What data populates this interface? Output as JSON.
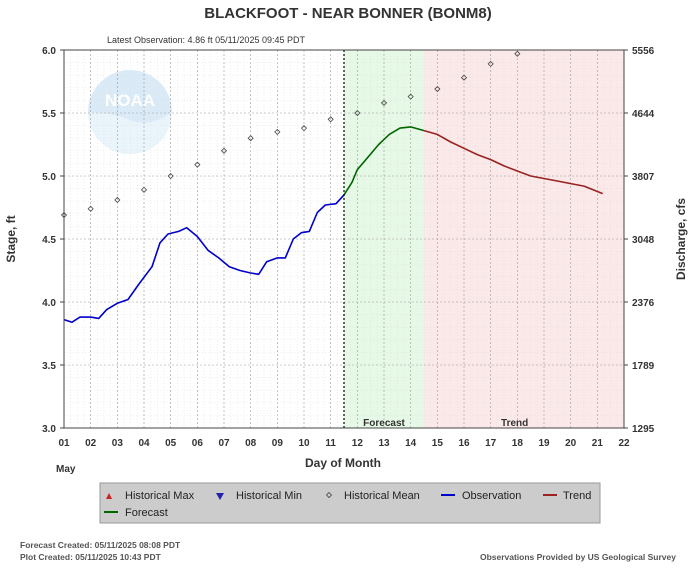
{
  "header": {
    "title": "BLACKFOOT - NEAR BONNER  (BONM8)",
    "latest": "Latest Observation: 4.86 ft 05/11/2025 09:45 PDT"
  },
  "logo_text": "NOAA",
  "footer": {
    "forecast_created": "Forecast Created: 05/11/2025 08:08 PDT",
    "plot_created": "Plot Created: 05/11/2025 10:43 PDT",
    "provider": "Observations Provided by US Geological Survey"
  },
  "colors": {
    "observation": "#0000cc",
    "forecast": "#006600",
    "trend": "#992222",
    "forecast_band": "#e6f8e6",
    "trend_band": "#fbe8e8",
    "historical_max": "#cc2222",
    "historical_min": "#2222aa"
  },
  "chart_data": {
    "type": "line",
    "xlabel": "Day of Month",
    "xmonth": "May",
    "ylabel": "Stage, ft",
    "y2label": "Discharge, cfs",
    "xlim": [
      1,
      22
    ],
    "ylim": [
      3.0,
      6.0
    ],
    "x_ticks": [
      "01",
      "02",
      "03",
      "04",
      "05",
      "06",
      "07",
      "08",
      "09",
      "10",
      "11",
      "12",
      "13",
      "14",
      "15",
      "16",
      "17",
      "18",
      "19",
      "20",
      "21",
      "22"
    ],
    "y_ticks": [
      "3.0",
      "3.5",
      "4.0",
      "4.5",
      "5.0",
      "5.5",
      "6.0"
    ],
    "y2_ticks": [
      "1295",
      "1789",
      "2376",
      "3048",
      "3807",
      "4644",
      "5556"
    ],
    "regions": {
      "now_x": 11.5,
      "forecast": {
        "label": "Forecast",
        "from": 11.5,
        "to": 14.5
      },
      "trend": {
        "label": "Trend",
        "from": 14.5,
        "to": 22
      }
    },
    "legend": {
      "row1": [
        "Historical Max",
        "Historical Min",
        "Historical Mean",
        "Observation",
        "Trend"
      ],
      "row2": [
        "Forecast"
      ]
    },
    "series": [
      {
        "name": "Historical Mean",
        "style": "diamond",
        "points": [
          [
            1,
            4.69
          ],
          [
            2,
            4.74
          ],
          [
            3,
            4.81
          ],
          [
            4,
            4.89
          ],
          [
            5,
            5.0
          ],
          [
            6,
            5.09
          ],
          [
            7,
            5.2
          ],
          [
            8,
            5.3
          ],
          [
            9,
            5.35
          ],
          [
            10,
            5.38
          ],
          [
            11,
            5.45
          ],
          [
            12,
            5.5
          ],
          [
            13,
            5.58
          ],
          [
            14,
            5.63
          ],
          [
            15,
            5.69
          ],
          [
            16,
            5.78
          ],
          [
            17,
            5.89
          ],
          [
            18,
            5.97
          ]
        ]
      },
      {
        "name": "Observation",
        "style": "line",
        "points": [
          [
            1.0,
            3.86
          ],
          [
            1.3,
            3.84
          ],
          [
            1.6,
            3.88
          ],
          [
            2.0,
            3.88
          ],
          [
            2.3,
            3.87
          ],
          [
            2.6,
            3.94
          ],
          [
            3.0,
            3.99
          ],
          [
            3.4,
            4.02
          ],
          [
            3.8,
            4.14
          ],
          [
            4.3,
            4.28
          ],
          [
            4.6,
            4.47
          ],
          [
            4.9,
            4.54
          ],
          [
            5.3,
            4.56
          ],
          [
            5.6,
            4.59
          ],
          [
            6.0,
            4.52
          ],
          [
            6.4,
            4.41
          ],
          [
            6.8,
            4.35
          ],
          [
            7.2,
            4.28
          ],
          [
            7.6,
            4.25
          ],
          [
            8.0,
            4.23
          ],
          [
            8.3,
            4.22
          ],
          [
            8.6,
            4.32
          ],
          [
            9.0,
            4.35
          ],
          [
            9.3,
            4.35
          ],
          [
            9.6,
            4.5
          ],
          [
            9.9,
            4.55
          ],
          [
            10.2,
            4.56
          ],
          [
            10.5,
            4.71
          ],
          [
            10.8,
            4.77
          ],
          [
            11.2,
            4.78
          ],
          [
            11.5,
            4.85
          ]
        ]
      },
      {
        "name": "Forecast",
        "style": "line",
        "points": [
          [
            11.5,
            4.85
          ],
          [
            11.8,
            4.95
          ],
          [
            12.0,
            5.05
          ],
          [
            12.4,
            5.15
          ],
          [
            12.8,
            5.25
          ],
          [
            13.2,
            5.33
          ],
          [
            13.6,
            5.38
          ],
          [
            14.0,
            5.39
          ],
          [
            14.5,
            5.36
          ]
        ]
      },
      {
        "name": "Trend",
        "style": "line",
        "points": [
          [
            14.5,
            5.36
          ],
          [
            15.0,
            5.33
          ],
          [
            15.5,
            5.27
          ],
          [
            16.0,
            5.22
          ],
          [
            16.5,
            5.17
          ],
          [
            17.0,
            5.13
          ],
          [
            17.5,
            5.08
          ],
          [
            18.0,
            5.04
          ],
          [
            18.5,
            5.0
          ],
          [
            19.0,
            4.98
          ],
          [
            19.5,
            4.96
          ],
          [
            20.0,
            4.94
          ],
          [
            20.5,
            4.92
          ],
          [
            21.2,
            4.86
          ]
        ]
      }
    ]
  }
}
